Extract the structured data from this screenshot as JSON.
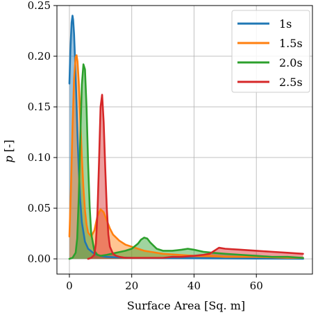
{
  "chart_data": {
    "type": "area",
    "title": "",
    "xlabel": "Surface Area [Sq. m]",
    "ylabel_symbol": "p",
    "ylabel_unit": "[-]",
    "xlim": [
      -4,
      78
    ],
    "ylim": [
      -0.015,
      0.25
    ],
    "xticks": [
      0,
      20,
      40,
      60
    ],
    "yticks": [
      0.0,
      0.05,
      0.1,
      0.15,
      0.2,
      0.25
    ],
    "xtick_labels": [
      "0",
      "20",
      "40",
      "60"
    ],
    "ytick_labels": [
      "0.00",
      "0.05",
      "0.10",
      "0.15",
      "0.20",
      "0.25"
    ],
    "grid": true,
    "legend_position": "top-right",
    "fill_alpha": 0.45,
    "series": [
      {
        "name": "1s",
        "color": "#1f77b4",
        "x": [
          0,
          0.3,
          0.7,
          1.0,
          1.2,
          1.5,
          1.8,
          2.2,
          2.6,
          3.0,
          3.5,
          4.0,
          5.0,
          6.0,
          8.0,
          10.0,
          12.0,
          15.0,
          20.0,
          30.0,
          40.0,
          50.0,
          60.0,
          70.0,
          75.0
        ],
        "values": [
          0.173,
          0.205,
          0.233,
          0.24,
          0.236,
          0.222,
          0.198,
          0.162,
          0.122,
          0.088,
          0.057,
          0.036,
          0.017,
          0.01,
          0.005,
          0.003,
          0.002,
          0.0015,
          0.001,
          0.0008,
          0.0006,
          0.0004,
          0.0003,
          0.0002,
          0.0001
        ]
      },
      {
        "name": "1.5s",
        "color": "#ff7f0e",
        "x": [
          0,
          0.5,
          1.0,
          1.5,
          2.0,
          2.3,
          2.6,
          3.0,
          3.5,
          4.0,
          4.5,
          5.0,
          5.5,
          6.0,
          7.0,
          8.0,
          9.0,
          10.0,
          11.0,
          12.0,
          13.0,
          14.0,
          16.0,
          18.0,
          20.0,
          22.0,
          24.0,
          26.0,
          30.0,
          35.0,
          40.0,
          45.0,
          50.0,
          60.0,
          70.0,
          75.0
        ],
        "values": [
          0.022,
          0.07,
          0.13,
          0.178,
          0.199,
          0.201,
          0.195,
          0.175,
          0.138,
          0.1,
          0.07,
          0.048,
          0.034,
          0.026,
          0.022,
          0.028,
          0.042,
          0.049,
          0.046,
          0.038,
          0.03,
          0.024,
          0.018,
          0.014,
          0.012,
          0.01,
          0.008,
          0.007,
          0.005,
          0.004,
          0.003,
          0.003,
          0.002,
          0.002,
          0.001,
          0.001
        ]
      },
      {
        "name": "2.0s",
        "color": "#2ca02c",
        "x": [
          0,
          1.0,
          2.0,
          2.5,
          3.0,
          3.5,
          4.0,
          4.5,
          5.0,
          5.5,
          6.0,
          6.5,
          7.0,
          8.0,
          9.0,
          10.0,
          12.0,
          15.0,
          18.0,
          20.0,
          22.0,
          23.0,
          24.0,
          25.0,
          26.0,
          28.0,
          30.0,
          33.0,
          36.0,
          38.0,
          40.0,
          43.0,
          46.0,
          50.0,
          55.0,
          60.0,
          65.0,
          70.0,
          75.0
        ],
        "values": [
          0.0,
          0.001,
          0.006,
          0.02,
          0.06,
          0.12,
          0.172,
          0.192,
          0.187,
          0.15,
          0.095,
          0.052,
          0.025,
          0.008,
          0.004,
          0.003,
          0.004,
          0.006,
          0.008,
          0.01,
          0.015,
          0.019,
          0.021,
          0.02,
          0.016,
          0.01,
          0.008,
          0.008,
          0.009,
          0.01,
          0.009,
          0.007,
          0.006,
          0.005,
          0.004,
          0.003,
          0.002,
          0.002,
          0.001
        ]
      },
      {
        "name": "2.5s",
        "color": "#d62728",
        "x": [
          6.0,
          7.0,
          8.0,
          8.5,
          9.0,
          9.5,
          10.0,
          10.5,
          11.0,
          11.5,
          12.0,
          12.5,
          13.0,
          14.0,
          15.0,
          16.0,
          18.0,
          20.0,
          22.0,
          25.0,
          28.0,
          30.0,
          33.0,
          36.0,
          40.0,
          43.0,
          45.0,
          48.0,
          50.0,
          55.0,
          60.0,
          65.0,
          70.0,
          75.0
        ],
        "values": [
          0.0,
          0.001,
          0.004,
          0.015,
          0.045,
          0.095,
          0.15,
          0.162,
          0.135,
          0.09,
          0.05,
          0.024,
          0.012,
          0.005,
          0.003,
          0.002,
          0.001,
          0.001,
          0.001,
          0.001,
          0.001,
          0.001,
          0.002,
          0.002,
          0.003,
          0.004,
          0.005,
          0.011,
          0.01,
          0.009,
          0.008,
          0.007,
          0.006,
          0.005
        ]
      }
    ]
  }
}
